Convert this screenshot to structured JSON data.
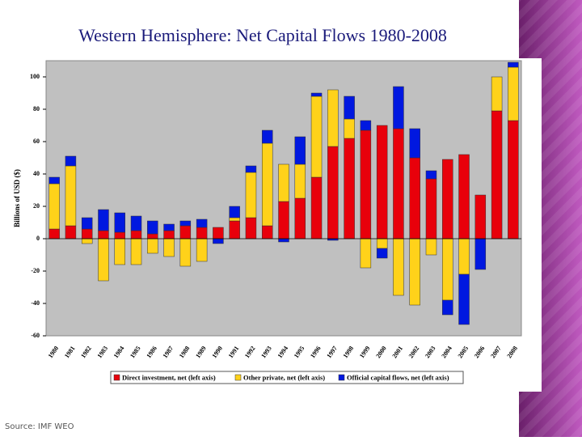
{
  "chart_data": {
    "type": "bar",
    "stacked": true,
    "title": "Western Hemisphere: Net Capital Flows 1980-2008",
    "y_label": "Billions of USD ($)",
    "source": "Source:  IMF WEO",
    "categories": [
      "1980",
      "1981",
      "1982",
      "1983",
      "1984",
      "1985",
      "1986",
      "1987",
      "1988",
      "1989",
      "1990",
      "1991",
      "1992",
      "1993",
      "1994",
      "1995",
      "1996",
      "1997",
      "1998",
      "1999",
      "2000",
      "2001",
      "2002",
      "2003",
      "2004",
      "2005",
      "2006",
      "2007",
      "2008"
    ],
    "series": [
      {
        "name": "Direct investment, net (left axis)",
        "color": "#e8000b",
        "values": [
          6,
          8,
          6,
          5,
          4,
          5,
          3,
          5,
          8,
          7,
          7,
          11,
          13,
          8,
          23,
          25,
          38,
          57,
          62,
          67,
          70,
          68,
          50,
          37,
          49,
          52,
          27,
          79,
          73
        ]
      },
      {
        "name": "Other private, net (left axis)",
        "color": "#ffd21a",
        "values": [
          28,
          37,
          -3,
          -26,
          -16,
          -16,
          -9,
          -11,
          -17,
          -14,
          0,
          2,
          28,
          51,
          23,
          21,
          50,
          35,
          12,
          -18,
          -6,
          -35,
          -41,
          -10,
          -38,
          -22,
          0,
          21,
          33
        ]
      },
      {
        "name": "Official capital flows, net (left axis)",
        "color": "#0018e0",
        "values": [
          4,
          6,
          7,
          13,
          12,
          9,
          8,
          4,
          3,
          5,
          -3,
          7,
          4,
          8,
          -2,
          17,
          2,
          -1,
          14,
          6,
          -6,
          26,
          18,
          5,
          -9,
          -31,
          -19,
          0,
          3
        ]
      }
    ],
    "ylim": [
      -60,
      110
    ],
    "yticks": [
      -60,
      -40,
      -20,
      0,
      20,
      40,
      60,
      80,
      100
    ],
    "plot_background": "#c0c0c0",
    "legend": "bottom"
  }
}
